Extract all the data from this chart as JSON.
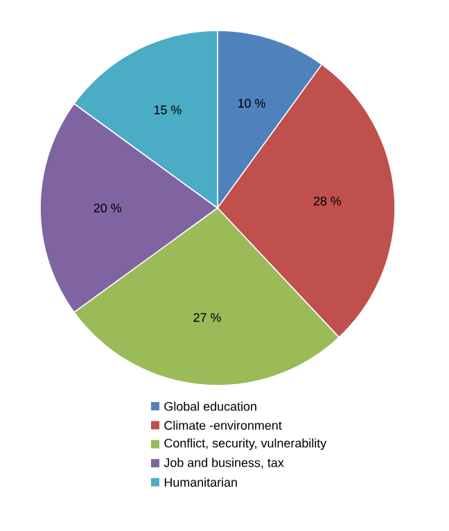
{
  "chart_data": {
    "type": "pie",
    "categories": [
      "Global education",
      "Climate -environment",
      "Conflict, security, vulnerability",
      "Job and business, tax",
      "Humanitarian"
    ],
    "values": [
      10,
      28,
      27,
      20,
      15
    ],
    "colors": [
      "#4f81bd",
      "#c0504d",
      "#9bbb59",
      "#8064a2",
      "#4bacc6"
    ],
    "value_labels": [
      "10 %",
      "28 %",
      "27 %",
      "20 %",
      "15 %"
    ],
    "legend": "bottom"
  }
}
